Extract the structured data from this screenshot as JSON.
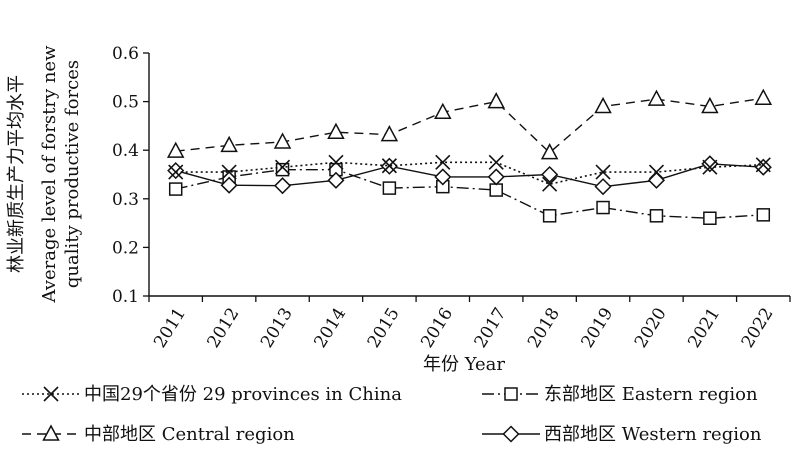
{
  "chart_data": {
    "type": "line",
    "categories": [
      "2011",
      "2012",
      "2013",
      "2014",
      "2015",
      "2016",
      "2017",
      "2018",
      "2019",
      "2020",
      "2021",
      "2022"
    ],
    "xlabel": "年份 Year",
    "ylabel_cn": "林业新质生产力平均水平",
    "ylabel_en_line1": "Average level of forstry new",
    "ylabel_en_line2": "quality productive forces",
    "ylim": [
      0.1,
      0.6
    ],
    "yticks": [
      "0.1",
      "0.2",
      "0.3",
      "0.4",
      "0.5",
      "0.6"
    ],
    "grid": false,
    "legend_position": "bottom",
    "series": [
      {
        "name": "中国29个省份 29 provinces  in China",
        "marker": "x-cross",
        "line_style": "dotted",
        "values": [
          0.355,
          0.355,
          0.365,
          0.375,
          0.368,
          0.375,
          0.375,
          0.33,
          0.355,
          0.355,
          0.365,
          0.37
        ]
      },
      {
        "name": "东部地区 Eastern region",
        "marker": "square",
        "line_style": "dash-dot",
        "values": [
          0.32,
          0.345,
          0.36,
          0.36,
          0.322,
          0.325,
          0.318,
          0.265,
          0.282,
          0.265,
          0.26,
          0.267
        ]
      },
      {
        "name": "中部地区 Central region",
        "marker": "triangle",
        "line_style": "dashed",
        "values": [
          0.398,
          0.41,
          0.417,
          0.437,
          0.432,
          0.478,
          0.5,
          0.395,
          0.49,
          0.505,
          0.49,
          0.507
        ]
      },
      {
        "name": "西部地区 Western region",
        "marker": "diamond",
        "line_style": "solid",
        "values": [
          0.358,
          0.328,
          0.327,
          0.338,
          0.367,
          0.345,
          0.345,
          0.35,
          0.325,
          0.338,
          0.372,
          0.365
        ]
      }
    ]
  }
}
